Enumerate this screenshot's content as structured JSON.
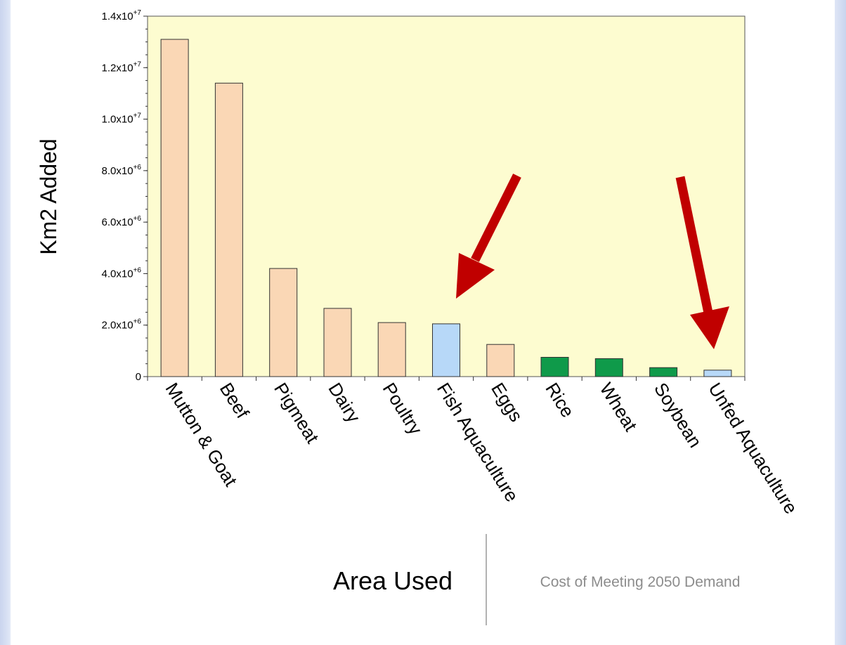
{
  "chart_data": {
    "type": "bar",
    "ylabel": "Km2 Added",
    "xlabel": "Area Used",
    "caption": "Cost of Meeting 2050 Demand",
    "ylim": [
      0,
      14000000
    ],
    "yticks": [
      {
        "value": 0,
        "mantissa": "0",
        "exp": ""
      },
      {
        "value": 2000000,
        "mantissa": "2.0x10",
        "exp": "+6"
      },
      {
        "value": 4000000,
        "mantissa": "4.0x10",
        "exp": "+6"
      },
      {
        "value": 6000000,
        "mantissa": "6.0x10",
        "exp": "+6"
      },
      {
        "value": 8000000,
        "mantissa": "8.0x10",
        "exp": "+6"
      },
      {
        "value": 10000000,
        "mantissa": "1.0x10",
        "exp": "+7"
      },
      {
        "value": 12000000,
        "mantissa": "1.2x10",
        "exp": "+7"
      },
      {
        "value": 14000000,
        "mantissa": "1.4x10",
        "exp": "+7"
      }
    ],
    "categories": [
      "Mutton & Goat",
      "Beef",
      "Pigmeat",
      "Dairy",
      "Poultry",
      "Fish Aquaculture",
      "Eggs",
      "Rice",
      "Wheat",
      "Soybean",
      "Unfed Aquaculture"
    ],
    "values": [
      13100000,
      11400000,
      4200000,
      2650000,
      2100000,
      2050000,
      1250000,
      750000,
      700000,
      350000,
      250000
    ],
    "bar_colors": [
      "#fad7b5",
      "#fad7b5",
      "#fad7b5",
      "#fad7b5",
      "#fad7b5",
      "#b7d8f8",
      "#fad7b5",
      "#0f9a4a",
      "#0f9a4a",
      "#0f9a4a",
      "#b7d8f8"
    ],
    "plot_background": "#fdfcd0",
    "arrow_color": "#c00000",
    "arrows_point_to": [
      "Fish Aquaculture",
      "Unfed Aquaculture"
    ],
    "grid": false,
    "legend": "none"
  }
}
